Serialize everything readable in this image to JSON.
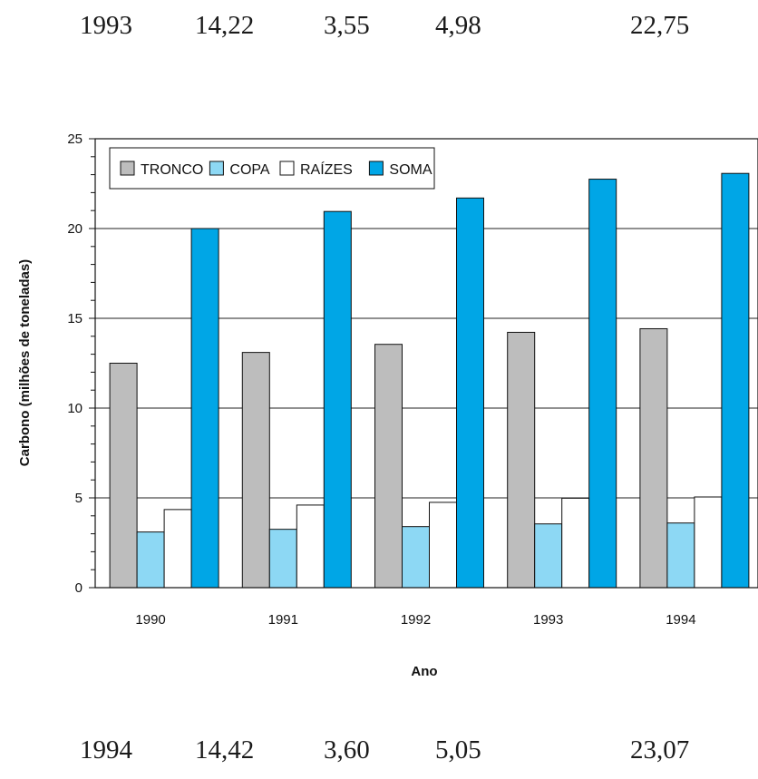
{
  "top_row": {
    "year": "1993",
    "tronco": "14,22",
    "copa": "3,55",
    "raizes": "4,98",
    "soma": "22,75"
  },
  "bottom_row": {
    "year": "1994",
    "tronco": "14,42",
    "copa": "3,60",
    "raizes": "5,05",
    "soma": "23,07"
  },
  "chart_data": {
    "type": "bar",
    "categories": [
      "1990",
      "1991",
      "1992",
      "1993",
      "1994"
    ],
    "series": [
      {
        "name": "TRONCO",
        "values": [
          12.5,
          13.1,
          13.55,
          14.22,
          14.42
        ],
        "color": "#bdbdbd"
      },
      {
        "name": "COPA",
        "values": [
          3.1,
          3.25,
          3.4,
          3.55,
          3.6
        ],
        "color": "#8dd8f4"
      },
      {
        "name": "RAÍZES",
        "values": [
          4.35,
          4.6,
          4.75,
          4.98,
          5.05
        ],
        "color": "#ffffff"
      },
      {
        "name": "SOMA",
        "values": [
          20.0,
          20.95,
          21.7,
          22.75,
          23.07
        ],
        "color": "#00a6e6"
      }
    ],
    "xlabel": "Ano",
    "ylabel": "Carbono (milhões de toneladas)",
    "ylim": [
      0,
      25
    ],
    "yticks": [
      "0",
      "5",
      "10",
      "15",
      "20",
      "25"
    ],
    "grid": true,
    "legend_position": "top-left"
  }
}
